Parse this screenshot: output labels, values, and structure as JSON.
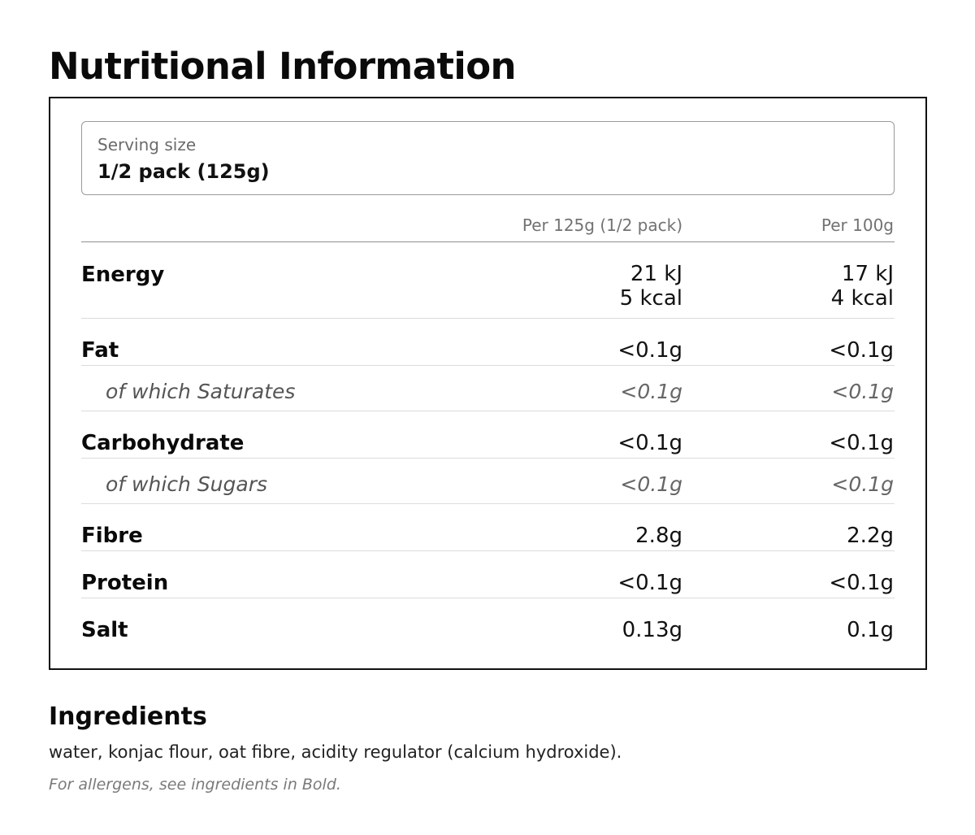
{
  "title": "Nutritional Information",
  "serving": {
    "label": "Serving size",
    "value": "1/2 pack (125g)"
  },
  "table": {
    "columns": [
      "Per 125g (1/2 pack)",
      "Per 100g"
    ],
    "rows": [
      {
        "nutrient": "Energy",
        "per_serving": [
          "21 kJ",
          "5 kcal"
        ],
        "per_100g": [
          "17 kJ",
          "4 kcal"
        ],
        "sub": false
      },
      {
        "nutrient": "Fat",
        "per_serving": "<0.1g",
        "per_100g": "<0.1g",
        "sub": false
      },
      {
        "nutrient": "of which Saturates",
        "per_serving": "<0.1g",
        "per_100g": "<0.1g",
        "sub": true
      },
      {
        "nutrient": "Carbohydrate",
        "per_serving": "<0.1g",
        "per_100g": "<0.1g",
        "sub": false
      },
      {
        "nutrient": "of which Sugars",
        "per_serving": "<0.1g",
        "per_100g": "<0.1g",
        "sub": true
      },
      {
        "nutrient": "Fibre",
        "per_serving": "2.8g",
        "per_100g": "2.2g",
        "sub": false
      },
      {
        "nutrient": "Protein",
        "per_serving": "<0.1g",
        "per_100g": "<0.1g",
        "sub": false
      },
      {
        "nutrient": "Salt",
        "per_serving": "0.13g",
        "per_100g": "0.1g",
        "sub": false
      }
    ]
  },
  "ingredients": {
    "heading": "Ingredients",
    "text": "water, konjac flour, oat fibre, acidity regulator (calcium hydroxide).",
    "allergen_note": "For allergens, see ingredients in Bold."
  }
}
